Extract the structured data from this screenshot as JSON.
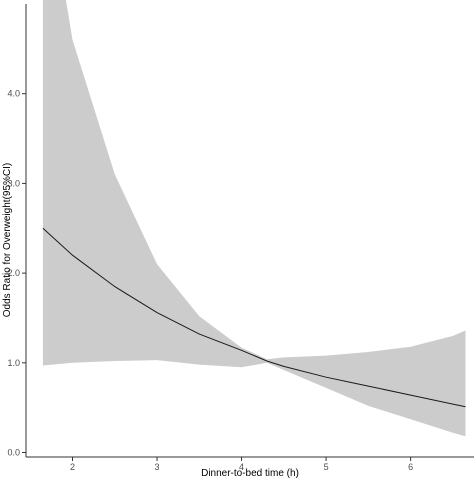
{
  "chart_data": {
    "type": "line",
    "title": "",
    "xlabel": "Dinner-to-bed time (h)",
    "ylabel": "Odds Ratio for Overweight(95%CI)",
    "xlim": [
      1.45,
      6.75
    ],
    "ylim": [
      -0.05,
      5.0
    ],
    "x_ticks": [
      2,
      3,
      4,
      5,
      6
    ],
    "y_ticks": [
      0.0,
      1.0,
      2.0,
      3.0,
      4.0
    ],
    "y_tick_labels": [
      "0.0",
      "1.0",
      "2.0",
      "3.0",
      "4.0"
    ],
    "grid": false,
    "series": [
      {
        "x": [
          1.65,
          2.0,
          2.5,
          3.0,
          3.5,
          4.0,
          4.3,
          4.5,
          5.0,
          5.5,
          6.0,
          6.5,
          6.65
        ],
        "y": [
          2.5,
          2.2,
          1.85,
          1.56,
          1.32,
          1.14,
          1.02,
          0.96,
          0.84,
          0.74,
          0.64,
          0.54,
          0.51
        ],
        "lower": [
          0.97,
          1.0,
          1.02,
          1.03,
          0.98,
          0.95,
          1.0,
          0.92,
          0.72,
          0.52,
          0.37,
          0.22,
          0.18
        ],
        "upper": [
          6.6,
          4.6,
          3.1,
          2.1,
          1.52,
          1.17,
          1.04,
          1.06,
          1.08,
          1.12,
          1.18,
          1.3,
          1.36
        ]
      }
    ],
    "colors": {
      "line": "#1a1a1a",
      "band": "#cccccc",
      "axis": "#333333",
      "tick_label": "#4d4d4d"
    }
  }
}
